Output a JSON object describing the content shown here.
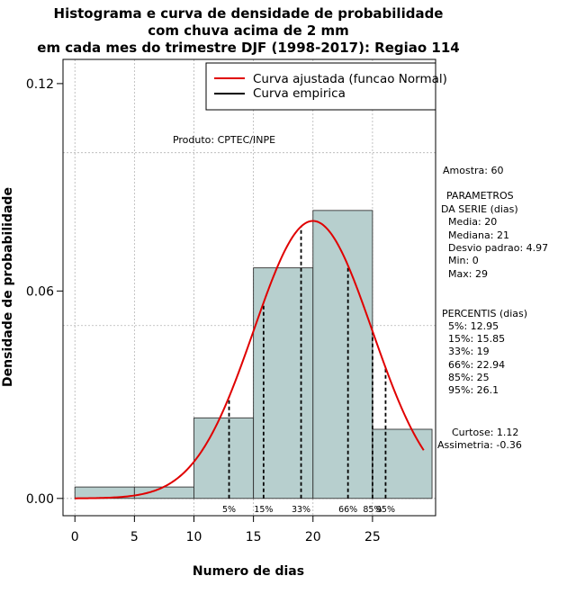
{
  "chart_data": {
    "type": "histogram",
    "title_lines": [
      "Histograma e curva de densidade de probabilidade",
      "com chuva acima de 2 mm",
      "em cada mes do trimestre DJF (1998-2017): Regiao 114"
    ],
    "xlabel": "Numero de dias",
    "ylabel": "Densidade de probabilidade",
    "xlim": [
      -1,
      30.3
    ],
    "ylim": [
      -0.005,
      0.127
    ],
    "x_ticks": [
      0,
      5,
      10,
      15,
      20,
      25
    ],
    "y_ticks": [
      0.0,
      0.06,
      0.12
    ],
    "y_tick_labels": [
      "0.00",
      "0.06",
      "0.12"
    ],
    "grid": true,
    "grid_x": [
      0,
      5,
      10,
      15,
      20,
      25
    ],
    "grid_y": [
      0.0,
      0.05,
      0.1
    ],
    "bins": [
      {
        "from": 0,
        "to": 5,
        "density": 0.0033
      },
      {
        "from": 5,
        "to": 10,
        "density": 0.0033
      },
      {
        "from": 10,
        "to": 15,
        "density": 0.0233
      },
      {
        "from": 15,
        "to": 20,
        "density": 0.0667
      },
      {
        "from": 20,
        "to": 25,
        "density": 0.0833
      },
      {
        "from": 25,
        "to": 30,
        "density": 0.02
      }
    ],
    "normal_fit": {
      "mean": 20,
      "sd": 4.97,
      "x_from": 0,
      "x_to": 29.3,
      "color": "#e00000"
    },
    "percentiles": [
      {
        "label": "5%",
        "x": 12.95
      },
      {
        "label": "15%",
        "x": 15.85
      },
      {
        "label": "33%",
        "x": 19
      },
      {
        "label": "66%",
        "x": 22.94
      },
      {
        "label": "85%",
        "x": 25
      },
      {
        "label": "95%",
        "x": 26.1
      }
    ],
    "legend": [
      {
        "label": "Curva ajustada (funcao Normal)",
        "color": "#e00000"
      },
      {
        "label": "Curva empirica",
        "color": "#000000"
      }
    ],
    "legend_position": "top-right",
    "annotation": "Produto: CPTEC/INPE",
    "bar_color": "#b7cfce"
  },
  "stats_panel": {
    "amostra": "Amostra: 60",
    "param_header": [
      "PARAMETROS",
      "DA SERIE (dias)"
    ],
    "params": [
      "Media: 20",
      "Mediana: 21",
      "Desvio padrao: 4.97",
      "Min: 0",
      "Max: 29"
    ],
    "percentis_header": "PERCENTIS (dias)",
    "percentis": [
      "5%: 12.95",
      "15%: 15.85",
      "33%: 19",
      "66%: 22.94",
      "85%: 25",
      "95%: 26.1"
    ],
    "curtose": "Curtose: 1.12",
    "assimetria": "Assimetria: -0.36"
  }
}
